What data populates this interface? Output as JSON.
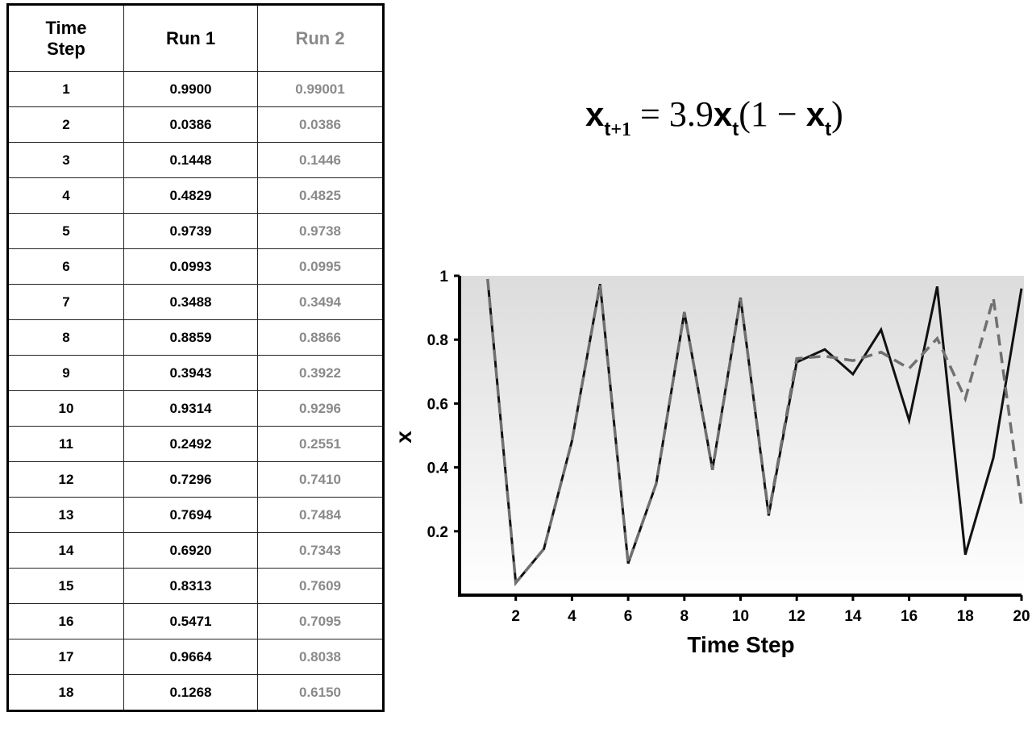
{
  "table": {
    "headers": {
      "time_step": "Time\nStep",
      "run1": "Run 1",
      "run2": "Run 2"
    },
    "rows": [
      {
        "step": "1",
        "run1": "0.9900",
        "run2": "0.99001"
      },
      {
        "step": "2",
        "run1": "0.0386",
        "run2": "0.0386"
      },
      {
        "step": "3",
        "run1": "0.1448",
        "run2": "0.1446"
      },
      {
        "step": "4",
        "run1": "0.4829",
        "run2": "0.4825"
      },
      {
        "step": "5",
        "run1": "0.9739",
        "run2": "0.9738"
      },
      {
        "step": "6",
        "run1": "0.0993",
        "run2": "0.0995"
      },
      {
        "step": "7",
        "run1": "0.3488",
        "run2": "0.3494"
      },
      {
        "step": "8",
        "run1": "0.8859",
        "run2": "0.8866"
      },
      {
        "step": "9",
        "run1": "0.3943",
        "run2": "0.3922"
      },
      {
        "step": "10",
        "run1": "0.9314",
        "run2": "0.9296"
      },
      {
        "step": "11",
        "run1": "0.2492",
        "run2": "0.2551"
      },
      {
        "step": "12",
        "run1": "0.7296",
        "run2": "0.7410"
      },
      {
        "step": "13",
        "run1": "0.7694",
        "run2": "0.7484"
      },
      {
        "step": "14",
        "run1": "0.6920",
        "run2": "0.7343"
      },
      {
        "step": "15",
        "run1": "0.8313",
        "run2": "0.7609"
      },
      {
        "step": "16",
        "run1": "0.5471",
        "run2": "0.7095"
      },
      {
        "step": "17",
        "run1": "0.9664",
        "run2": "0.8038"
      },
      {
        "step": "18",
        "run1": "0.1268",
        "run2": "0.6150"
      }
    ]
  },
  "equation": {
    "lhs_var": "x",
    "lhs_sub_var": "t",
    "lhs_sub_rest": "+1",
    "equals": " = 3.9",
    "rhs_var": "x",
    "rhs_sub": "t",
    "paren_open": "(1 − ",
    "inner_var": "x",
    "inner_sub": "t",
    "paren_close": ")"
  },
  "chart_data": {
    "type": "line",
    "xlabel": "Time Step",
    "ylabel": "x",
    "xlim": [
      0,
      20
    ],
    "ylim": [
      0,
      1
    ],
    "xticks": [
      2,
      4,
      6,
      8,
      10,
      12,
      14,
      16,
      18,
      20
    ],
    "yticks": [
      0.2,
      0.4,
      0.6,
      0.8,
      1
    ],
    "ytick_labels": [
      "0.2",
      "0.4",
      "0.6",
      "0.8",
      "1"
    ],
    "background": "gradient light gray (top) to white (bottom)",
    "series": [
      {
        "style": "solid",
        "color": "#111111",
        "x": [
          1,
          2,
          3,
          4,
          5,
          6,
          7,
          8,
          9,
          10,
          11,
          12,
          13,
          14,
          15,
          16,
          17,
          18,
          19,
          20
        ],
        "y": [
          0.99,
          0.0386,
          0.1448,
          0.4829,
          0.9739,
          0.0993,
          0.3488,
          0.8859,
          0.3943,
          0.9314,
          0.2492,
          0.7296,
          0.7694,
          0.692,
          0.8313,
          0.5471,
          0.9664,
          0.1268,
          0.43,
          0.96
        ]
      },
      {
        "style": "dashed",
        "color": "#707070",
        "x": [
          1,
          2,
          3,
          4,
          5,
          6,
          7,
          8,
          9,
          10,
          11,
          12,
          13,
          14,
          15,
          16,
          17,
          18,
          19,
          20
        ],
        "y": [
          0.99001,
          0.0386,
          0.1446,
          0.4825,
          0.9738,
          0.0995,
          0.3494,
          0.8866,
          0.3922,
          0.9296,
          0.2551,
          0.741,
          0.7484,
          0.7343,
          0.7609,
          0.7095,
          0.8038,
          0.615,
          0.93,
          0.28
        ]
      }
    ]
  }
}
